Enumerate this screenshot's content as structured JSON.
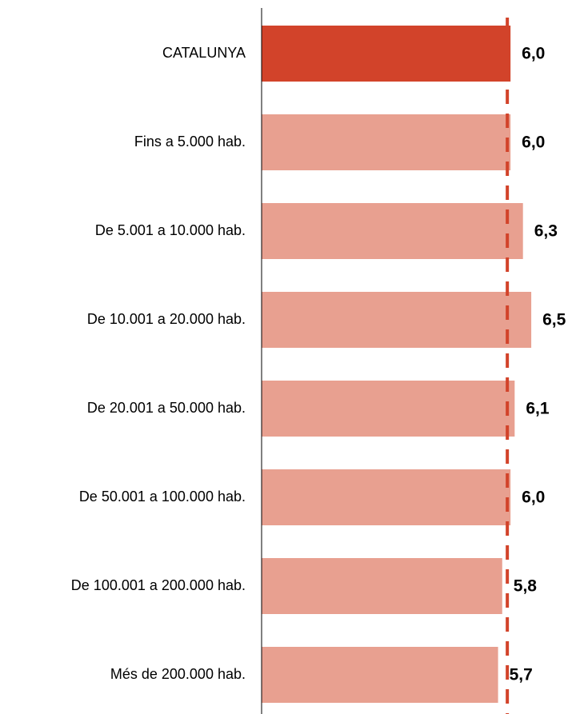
{
  "chart_data": {
    "type": "bar",
    "orientation": "horizontal",
    "categories": [
      "CATALUNYA",
      "Fins a 5.000 hab.",
      "De 5.001 a 10.000 hab.",
      "De 10.001 a 20.000 hab.",
      "De 20.001 a 50.000 hab.",
      "De 50.001 a 100.000 hab.",
      "De 100.001 a 200.000 hab.",
      "Més de 200.000 hab."
    ],
    "values": [
      6.0,
      6.0,
      6.3,
      6.5,
      6.1,
      6.0,
      5.8,
      5.7
    ],
    "value_labels": [
      "6,0",
      "6,0",
      "6,3",
      "6,5",
      "6,1",
      "6,0",
      "5,8",
      "5,7"
    ],
    "colors": [
      "#d2432a",
      "#e8a090",
      "#e8a090",
      "#e8a090",
      "#e8a090",
      "#e8a090",
      "#e8a090",
      "#e8a090"
    ],
    "reference_color": "#d2432a",
    "xlim": [
      0,
      7
    ]
  }
}
